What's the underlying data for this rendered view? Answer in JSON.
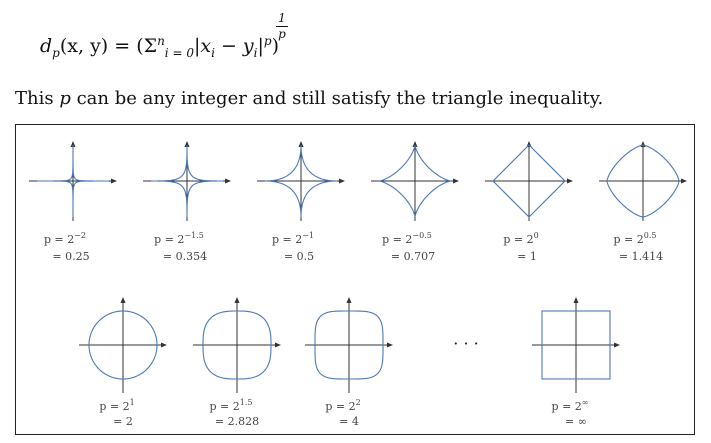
{
  "formula": {
    "lhs": "d",
    "lhs_sub": "p",
    "args": "(x, y) = (",
    "sigma": "Σ",
    "sigma_sup": "n",
    "sigma_sub": "i = 0",
    "abs_open": "|",
    "xi": "x",
    "xi_sub": "i",
    "minus": " − ",
    "yi": "y",
    "yi_sub": "i",
    "abs_close": "|",
    "power": "p",
    "close": ")",
    "exp_num": "1",
    "exp_den": "p"
  },
  "statement": {
    "prefix": "This ",
    "var": "p",
    "suffix": " can be any integer and still satisfy the triangle inequality."
  },
  "figure": {
    "row1": [
      {
        "exp": -2,
        "caption_1": "p = 2",
        "exp_label": "−2",
        "caption_2": "= 0.25"
      },
      {
        "exp": -1.5,
        "caption_1": "p = 2",
        "exp_label": "−1.5",
        "caption_2": "= 0.354"
      },
      {
        "exp": -1,
        "caption_1": "p = 2",
        "exp_label": "−1",
        "caption_2": "= 0.5"
      },
      {
        "exp": -0.5,
        "caption_1": "p = 2",
        "exp_label": "−0.5",
        "caption_2": "= 0.707"
      },
      {
        "exp": 0,
        "caption_1": "p = 2",
        "exp_label": "0",
        "caption_2": "= 1"
      },
      {
        "exp": 0.5,
        "caption_1": "p = 2",
        "exp_label": "0.5",
        "caption_2": "= 1.414"
      }
    ],
    "row2": [
      {
        "exp": 1,
        "caption_1": "p = 2",
        "exp_label": "1",
        "caption_2": "= 2"
      },
      {
        "exp": 1.5,
        "caption_1": "p = 2",
        "exp_label": "1.5",
        "caption_2": "= 2.828"
      },
      {
        "exp": 2,
        "caption_1": "p = 2",
        "exp_label": "2",
        "caption_2": "= 4"
      },
      {
        "exp": "inf",
        "caption_1": "p = 2",
        "exp_label": "∞",
        "caption_2": "= ∞"
      }
    ],
    "ellipsis": "· · ·",
    "curve_color": "#4a78b8",
    "axis_color": "#333333"
  }
}
